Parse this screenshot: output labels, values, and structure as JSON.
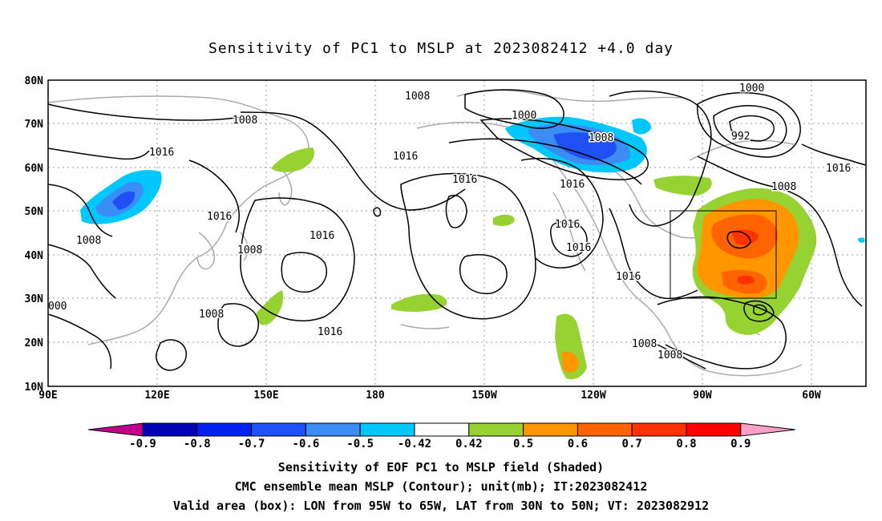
{
  "title": "Sensitivity of PC1 to MSLP at 2023082412 +4.0 day",
  "lat_ticks": [
    "80N",
    "70N",
    "60N",
    "50N",
    "40N",
    "30N",
    "20N",
    "10N"
  ],
  "lon_ticks": [
    "90E",
    "120E",
    "150E",
    "180",
    "150W",
    "120W",
    "90W",
    "60W"
  ],
  "contour_labels": [
    "1008",
    "1008",
    "1000",
    "1008",
    "1000",
    "992",
    "1016",
    "1016",
    "1016",
    "1016",
    "1016",
    "1008",
    "1008",
    "1016",
    "1016",
    "1016",
    "1016",
    "1016",
    "1008",
    "1008",
    "1008",
    "000"
  ],
  "colorbar": {
    "labels": [
      "-0.9",
      "-0.8",
      "-0.7",
      "-0.6",
      "-0.5",
      "-0.42",
      "0.42",
      "0.5",
      "0.6",
      "0.7",
      "0.8",
      "0.9"
    ],
    "colors": [
      "#c0008a",
      "#0000b4",
      "#0022ee",
      "#1e50f5",
      "#3c8cf5",
      "#00c8ff",
      "#ffffff",
      "#96d232",
      "#ff9600",
      "#ff6400",
      "#ff3200",
      "#ff0000",
      "#ffa0c8"
    ]
  },
  "captions": [
    "Sensitivity of EOF PC1 to MSLP field (Shaded)",
    "CMC ensemble mean MSLP (Contour); unit(mb); IT:2023082412",
    "Valid area (box): LON from 95W to 65W, LAT from 30N to 50N; VT: 2023082912"
  ]
}
